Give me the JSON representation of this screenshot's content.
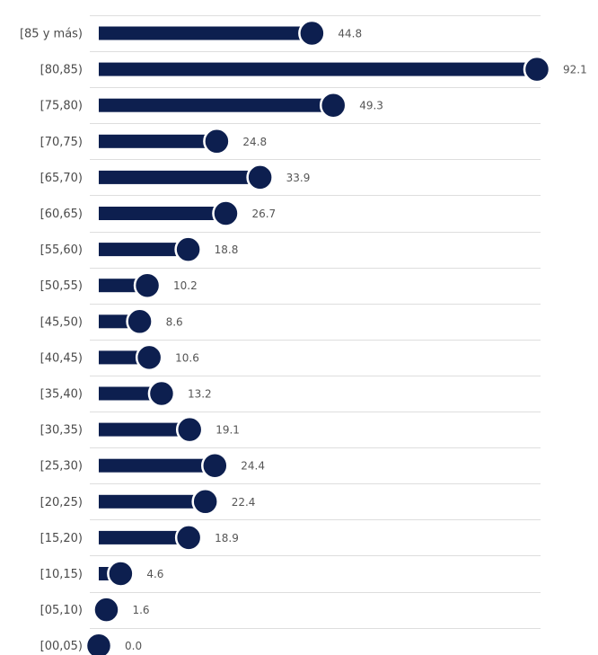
{
  "chart_data": {
    "type": "bar",
    "style": "lollipop",
    "orientation": "horizontal",
    "categories": [
      "[85 y más)",
      "[80,85)",
      "[75,80)",
      "[70,75)",
      "[65,70)",
      "[60,65)",
      "[55,60)",
      "[50,55)",
      "[45,50)",
      "[40,45)",
      "[35,40)",
      "[30,35)",
      "[25,30)",
      "[20,25)",
      "[15,20)",
      "[10,15)",
      "[05,10)",
      "[00,05)"
    ],
    "values": [
      44.8,
      92.1,
      49.3,
      24.8,
      33.9,
      26.7,
      18.8,
      10.2,
      8.6,
      10.6,
      13.2,
      19.1,
      24.4,
      22.4,
      18.9,
      4.6,
      1.6,
      0.0
    ],
    "value_labels": [
      "44.8",
      "92.1",
      "49.3",
      "24.8",
      "33.9",
      "26.7",
      "18.8",
      "10.2",
      "8.6",
      "10.6",
      "13.2",
      "19.1",
      "24.4",
      "22.4",
      "18.9",
      "4.6",
      "1.6",
      "0.0"
    ],
    "xlim": [
      0,
      92.1
    ],
    "grid": true,
    "legend": "none",
    "colors": {
      "bar": "#0d1f4f",
      "marker": "#0d1f4f",
      "marker_ring": "#ffffff",
      "grid": "#dedede"
    }
  }
}
